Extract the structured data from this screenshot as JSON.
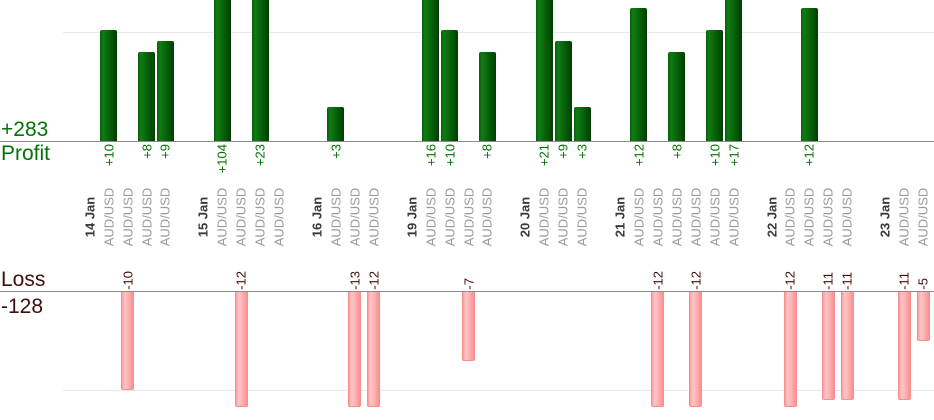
{
  "chart_data": {
    "type": "bar",
    "description": "Per-trade profit and loss bar chart grouped by day; green bars above the profit baseline, pink bars below the loss baseline; tall bars are clipped by the visible area",
    "axis": {
      "profit_total": "+283",
      "profit_label": "Profit",
      "loss_label": "Loss",
      "loss_total": "-128",
      "profit_gridline_value": 10,
      "loss_gridline_value": -10
    },
    "legend_position": "none",
    "grid": "single gridline at +10 and -10",
    "colors": {
      "profit_bar": "#0b6e0e",
      "loss_bar": "#fdb4b4",
      "loss_bar_border": "#f88f8f",
      "profit_text": "#067106",
      "loss_text": "#400d0c",
      "date_text": "#3a3a3a",
      "symbol_text": "#9a9a9a",
      "baseline": "#8c8c8c",
      "gridline": "#e9e9e9",
      "background": "#ffffff"
    },
    "groups": [
      {
        "date": "14 Jan",
        "trades": [
          {
            "pair": "AUD/USD",
            "result": 10,
            "label": "+10"
          },
          {
            "pair": "AUD/USD",
            "result": -10,
            "label": "-10"
          },
          {
            "pair": "AUD/USD",
            "result": 8,
            "label": "+8"
          },
          {
            "pair": "AUD/USD",
            "result": 9,
            "label": "+9"
          }
        ]
      },
      {
        "date": "15 Jan",
        "trades": [
          {
            "pair": "AUD/USD",
            "result": 104,
            "label": "+104"
          },
          {
            "pair": "AUD/USD",
            "result": -12,
            "label": "-12"
          },
          {
            "pair": "AUD/USD",
            "result": 23,
            "label": "+23"
          },
          {
            "pair": "AUD/USD",
            "result": 0,
            "label": ""
          }
        ]
      },
      {
        "date": "16 Jan",
        "trades": [
          {
            "pair": "AUD/USD",
            "result": 3,
            "label": "+3"
          },
          {
            "pair": "AUD/USD",
            "result": -13,
            "label": "-13"
          },
          {
            "pair": "AUD/USD",
            "result": -12,
            "label": "-12"
          }
        ]
      },
      {
        "date": "19 Jan",
        "trades": [
          {
            "pair": "AUD/USD",
            "result": 16,
            "label": "+16"
          },
          {
            "pair": "AUD/USD",
            "result": 10,
            "label": "+10"
          },
          {
            "pair": "AUD/USD",
            "result": -7,
            "label": "-7"
          },
          {
            "pair": "AUD/USD",
            "result": 8,
            "label": "+8"
          }
        ]
      },
      {
        "date": "20 Jan",
        "trades": [
          {
            "pair": "AUD/USD",
            "result": 21,
            "label": "+21"
          },
          {
            "pair": "AUD/USD",
            "result": 9,
            "label": "+9"
          },
          {
            "pair": "AUD/USD",
            "result": 3,
            "label": "+3"
          }
        ]
      },
      {
        "date": "21 Jan",
        "trades": [
          {
            "pair": "AUD/USD",
            "result": 12,
            "label": "+12"
          },
          {
            "pair": "AUD/USD",
            "result": -12,
            "label": "-12"
          },
          {
            "pair": "AUD/USD",
            "result": 8,
            "label": "+8"
          },
          {
            "pair": "AUD/USD",
            "result": -12,
            "label": "-12"
          },
          {
            "pair": "AUD/USD",
            "result": 10,
            "label": "+10"
          },
          {
            "pair": "AUD/USD",
            "result": 17,
            "label": "+17"
          }
        ]
      },
      {
        "date": "22 Jan",
        "trades": [
          {
            "pair": "AUD/USD",
            "result": -12,
            "label": "-12"
          },
          {
            "pair": "AUD/USD",
            "result": 12,
            "label": "+12"
          },
          {
            "pair": "AUD/USD",
            "result": -11,
            "label": "-11"
          },
          {
            "pair": "AUD/USD",
            "result": -11,
            "label": "-11"
          }
        ]
      },
      {
        "date": "23 Jan",
        "trades": [
          {
            "pair": "AUD/USD",
            "result": -11,
            "label": "-11"
          },
          {
            "pair": "AUD/USD",
            "result": -5,
            "label": "-5"
          }
        ]
      }
    ]
  }
}
